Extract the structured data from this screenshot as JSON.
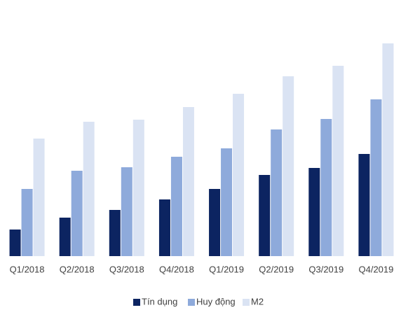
{
  "chart_data": {
    "type": "bar",
    "categories": [
      "Q1/2018",
      "Q2/2018",
      "Q3/2018",
      "Q4/2018",
      "Q1/2019",
      "Q2/2019",
      "Q3/2019",
      "Q4/2019"
    ],
    "series": [
      {
        "name": "Tín dụng",
        "color": "#0c2461",
        "values": [
          38,
          55,
          66,
          81,
          96,
          116,
          126,
          146
        ]
      },
      {
        "name": "Huy động",
        "color": "#8eaadb",
        "values": [
          96,
          122,
          127,
          142,
          154,
          181,
          196,
          224
        ]
      },
      {
        "name": "M2",
        "color": "#dae3f3",
        "values": [
          168,
          192,
          195,
          213,
          232,
          257,
          272,
          304
        ]
      }
    ],
    "ylim": [
      0,
      320
    ],
    "legend": "bottom"
  }
}
